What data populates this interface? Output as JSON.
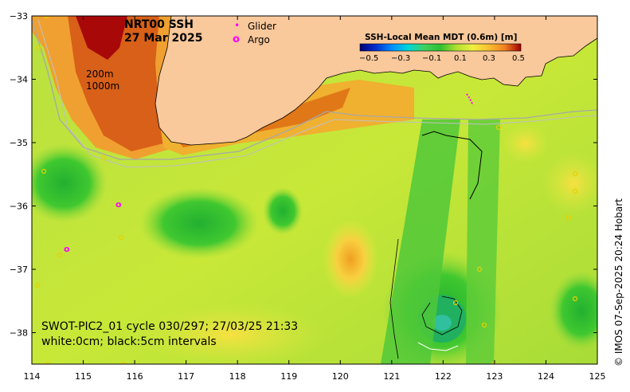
{
  "map": {
    "title_line1": "NRT00 SSH",
    "title_line2": "27 Mar 2025",
    "legend": {
      "glider_label": "Glider",
      "argo_label": "Argo",
      "glider_symbol": "•",
      "argo_symbol": "o"
    },
    "depth_labels": [
      "200m",
      "1000m"
    ],
    "colorbar": {
      "title": "SSH-Local Mean MDT (0.6m) [m]",
      "tick_labels": [
        "−0.5",
        "−0.3",
        "−0.1",
        "0.1",
        "0.3",
        "0.5"
      ],
      "colors": [
        "#00007a",
        "#0030d0",
        "#0090ff",
        "#00d8d8",
        "#40d060",
        "#30c030",
        "#b0e030",
        "#f0f040",
        "#f8c030",
        "#f08020",
        "#d04010",
        "#a00000"
      ]
    },
    "swot_caption_line1": "SWOT-PIC2_01 cycle 030/297; 27/03/25 21:33",
    "swot_caption_line2": "white:0cm; black:5cm intervals",
    "credit": "© IMOS 07-Sep-2025 20:24 Hobart",
    "x_ticks": [
      "114",
      "115",
      "116",
      "117",
      "118",
      "119",
      "120",
      "121",
      "122",
      "123",
      "124",
      "125"
    ],
    "y_ticks": [
      "−33",
      "−34",
      "−35",
      "−36",
      "−37",
      "−38"
    ],
    "land_color": "#f9c89b",
    "argo_color": "#ff00ff"
  }
}
